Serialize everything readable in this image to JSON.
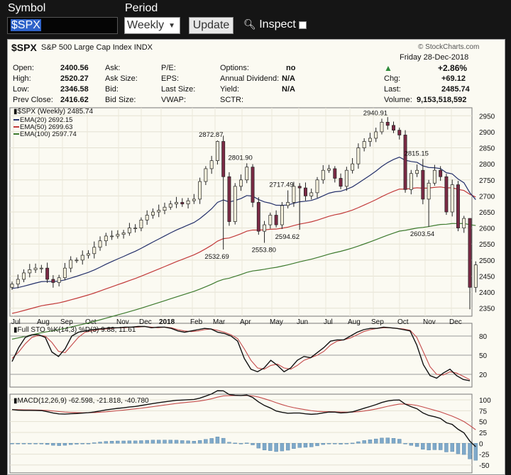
{
  "toolbar": {
    "symbol_label": "Symbol",
    "symbol_value": "$SPX",
    "period_label": "Period",
    "period_value": "Weekly",
    "update_label": "Update",
    "inspect_label": "Inspect"
  },
  "header": {
    "symbol": "$SPX",
    "name": "S&P 500 Large Cap Index",
    "exchange": "INDX",
    "watermark": "© StockCharts.com",
    "date": "Friday  28-Dec-2018",
    "change_pct": "+2.86%",
    "fields": {
      "open_label": "Open:",
      "open": "2400.56",
      "high_label": "High:",
      "high": "2520.27",
      "low_label": "Low:",
      "low": "2346.58",
      "prev_label": "Prev Close:",
      "prev": "2416.62",
      "ask_label": "Ask:",
      "asksize_label": "Ask Size:",
      "bid_label": "Bid:",
      "bidsize_label": "Bid Size:",
      "pe_label": "P/E:",
      "eps_label": "EPS:",
      "lastsize_label": "Last Size:",
      "vwap_label": "VWAP:",
      "options_label": "Options:",
      "options": "no",
      "dividend_label": "Annual Dividend:",
      "dividend": "N/A",
      "yield_label": "Yield:",
      "yield": "N/A",
      "sctr_label": "SCTR:",
      "chg_label": "Chg:",
      "chg": "+69.12",
      "last_label": "Last:",
      "last": "2485.74",
      "volume_label": "Volume:",
      "volume": "9,153,518,592"
    }
  },
  "colors": {
    "up": "#f4f0dc",
    "down": "#7b2a45",
    "ema20": "#24306a",
    "ema50": "#c23a3a",
    "ema100": "#3d7a2e",
    "sto_k": "#111111",
    "sto_d": "#c44a4a",
    "macd": "#111111",
    "signal": "#c44a4a",
    "hist": "#7fa9c9",
    "accent_up": "#2e8b3a"
  },
  "chart_data": {
    "type": "candlestick",
    "period": "Weekly",
    "series_label": "$SPX (Weekly) 2485.74",
    "legend": [
      {
        "name": "EMA(20) 2692.15",
        "color": "#24306a"
      },
      {
        "name": "EMA(50) 2699.63",
        "color": "#c23a3a"
      },
      {
        "name": "EMA(100) 2597.74",
        "color": "#3d7a2e"
      }
    ],
    "x_labels": [
      "Jul",
      "Aug",
      "Sep",
      "Oct",
      "Nov",
      "Dec",
      "2018",
      "Feb",
      "Mar",
      "Apr",
      "May",
      "Jun",
      "Jul",
      "Aug",
      "Sep",
      "Oct",
      "Nov",
      "Dec"
    ],
    "y_ticks": [
      2350,
      2400,
      2450,
      2500,
      2550,
      2600,
      2650,
      2700,
      2750,
      2800,
      2850,
      2900,
      2950
    ],
    "ylim": [
      2325,
      2975
    ],
    "annotations": [
      {
        "label": "2872.87",
        "week": 53,
        "value": 2872.87,
        "pos": "above"
      },
      {
        "label": "2801.90",
        "week": 58,
        "value": 2801.9,
        "pos": "above"
      },
      {
        "label": "2717.49",
        "week": 65,
        "value": 2717.49,
        "pos": "above"
      },
      {
        "label": "2940.91",
        "week": 81,
        "value": 2940.91,
        "pos": "above"
      },
      {
        "label": "2815.15",
        "week": 88,
        "value": 2815.15,
        "pos": "above"
      },
      {
        "label": "2532.69",
        "week": 54,
        "value": 2532.69,
        "pos": "below"
      },
      {
        "label": "2553.80",
        "week": 62,
        "value": 2553.8,
        "pos": "below"
      },
      {
        "label": "2594.62",
        "week": 66,
        "value": 2594.62,
        "pos": "below"
      },
      {
        "label": "2603.54",
        "week": 89,
        "value": 2603.54,
        "pos": "below"
      }
    ],
    "closes": [
      2425,
      2440,
      2460,
      2470,
      2475,
      2475,
      2440,
      2430,
      2445,
      2475,
      2500,
      2500,
      2515,
      2520,
      2540,
      2560,
      2575,
      2575,
      2580,
      2585,
      2600,
      2600,
      2625,
      2640,
      2650,
      2655,
      2665,
      2675,
      2680,
      2675,
      2685,
      2690,
      2745,
      2785,
      2810,
      2870,
      2760,
      2620,
      2730,
      2750,
      2790,
      2680,
      2590,
      2610,
      2640,
      2610,
      2670,
      2680,
      2730,
      2725,
      2700,
      2710,
      2750,
      2780,
      2785,
      2755,
      2730,
      2780,
      2800,
      2850,
      2870,
      2880,
      2900,
      2930,
      2920,
      2905,
      2890,
      2720,
      2770,
      2780,
      2690,
      2740,
      2780,
      2760,
      2650,
      2735,
      2600,
      2630,
      2415,
      2485
    ],
    "weeks_start": 1,
    "sto": {
      "label": "Full STO %K(14,3) %D(3) 9.88, 11.61",
      "ticks": [
        20,
        50,
        80
      ],
      "k": [
        40,
        62,
        78,
        82,
        82,
        78,
        55,
        48,
        60,
        80,
        86,
        88,
        90,
        91,
        92,
        93,
        93,
        94,
        94,
        95,
        95,
        93,
        94,
        94,
        92,
        88,
        86,
        88,
        90,
        92,
        91,
        86,
        84,
        80,
        72,
        45,
        28,
        24,
        30,
        42,
        34,
        24,
        30,
        42,
        48,
        46,
        54,
        62,
        72,
        74,
        74,
        80,
        86,
        90,
        92,
        92,
        94,
        93,
        92,
        90,
        88,
        66,
        35,
        18,
        14,
        22,
        28,
        18,
        12,
        9.88
      ],
      "d": [
        45,
        55,
        68,
        78,
        81,
        80,
        70,
        56,
        54,
        66,
        78,
        86,
        88,
        90,
        91,
        92,
        93,
        93,
        94,
        94,
        95,
        94,
        93,
        94,
        93,
        90,
        88,
        87,
        88,
        90,
        91,
        89,
        86,
        82,
        76,
        60,
        42,
        30,
        28,
        34,
        36,
        30,
        28,
        34,
        42,
        46,
        50,
        56,
        66,
        72,
        74,
        77,
        82,
        87,
        90,
        92,
        93,
        93,
        92,
        91,
        89,
        78,
        55,
        32,
        20,
        19,
        24,
        22,
        17,
        11.61
      ]
    },
    "macd": {
      "label": "MACD(12,26,9) -62.598, -21.818, -40.780",
      "ticks": [
        -50,
        -25,
        0,
        25,
        50,
        75,
        100
      ]
    }
  }
}
